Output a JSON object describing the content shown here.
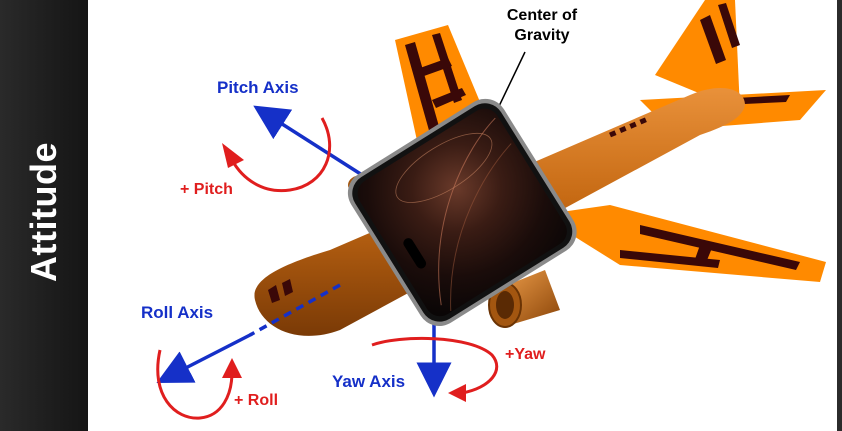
{
  "sidebar": {
    "title": "Attitude"
  },
  "labels": {
    "center_of_gravity_line1": "Center of",
    "center_of_gravity_line2": "Gravity",
    "pitch_axis": "Pitch Axis",
    "plus_pitch": "+ Pitch",
    "roll_axis": "Roll Axis",
    "plus_roll": "+ Roll",
    "yaw_axis": "Yaw Axis",
    "plus_yaw": "+Yaw"
  },
  "colors": {
    "axis_blue": "#1530c8",
    "rotation_red": "#e01e1e",
    "airplane_orange": "#ff8a00",
    "fuselage_brown": "#b8600f",
    "stripe_dark": "#3a0808"
  },
  "icons": [
    "airplane-illustration",
    "smartphone-overlay"
  ]
}
